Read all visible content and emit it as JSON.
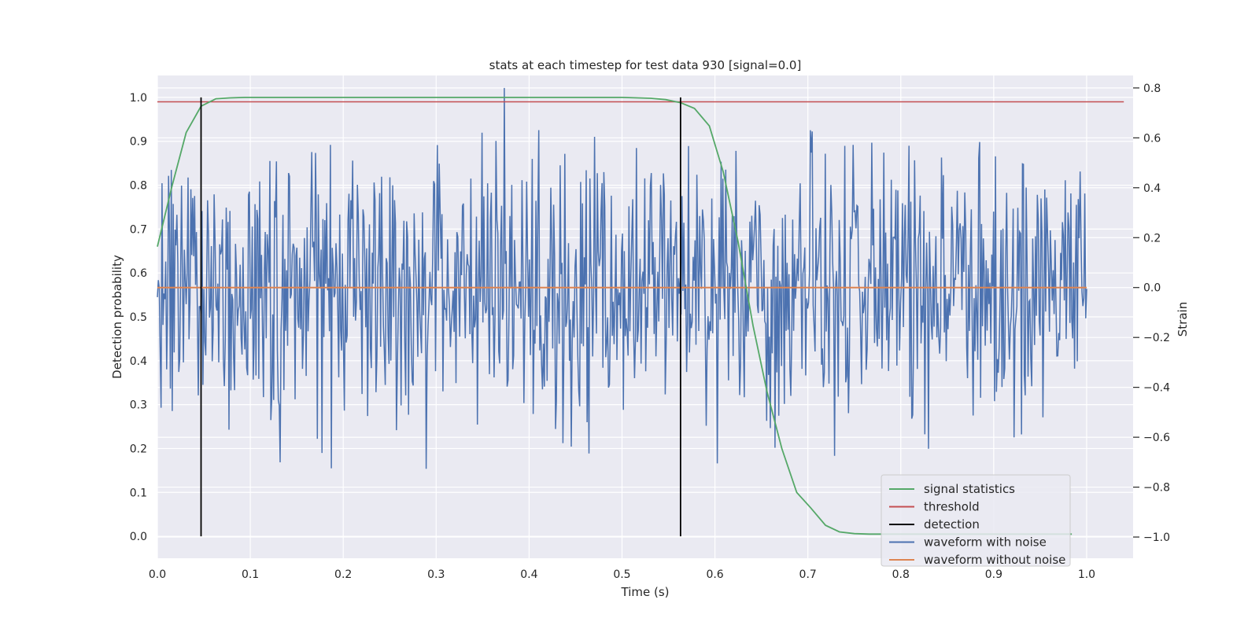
{
  "chart_data": {
    "type": "line",
    "title": "stats at each timestep for test data 930 [signal=0.0]",
    "xlabel": "Time (s)",
    "ylabel_left": "Detection probability",
    "ylabel_right": "Strain",
    "xlim": [
      0.0,
      1.05
    ],
    "ylim_left": [
      -0.05,
      1.05
    ],
    "ylim_right": [
      -1.085,
      0.85
    ],
    "x_ticks": [
      0.0,
      0.1,
      0.2,
      0.3,
      0.4,
      0.5,
      0.6,
      0.7,
      0.8,
      0.9,
      1.0
    ],
    "x_tick_labels": [
      "0.0",
      "0.1",
      "0.2",
      "0.3",
      "0.4",
      "0.5",
      "0.6",
      "0.7",
      "0.8",
      "0.9",
      "1.0"
    ],
    "y_left_ticks": [
      0.0,
      0.1,
      0.2,
      0.3,
      0.4,
      0.5,
      0.6,
      0.7,
      0.8,
      0.9,
      1.0
    ],
    "y_left_tick_labels": [
      "0.0",
      "0.1",
      "0.2",
      "0.3",
      "0.4",
      "0.5",
      "0.6",
      "0.7",
      "0.8",
      "0.9",
      "1.0"
    ],
    "y_right_ticks": [
      -1.0,
      -0.8,
      -0.6,
      -0.4,
      -0.2,
      0.0,
      0.2,
      0.4,
      0.6,
      0.8
    ],
    "y_right_tick_labels": [
      "−1.0",
      "−0.8",
      "−0.6",
      "−0.4",
      "−0.2",
      "0.0",
      "0.2",
      "0.4",
      "0.6",
      "0.8"
    ],
    "grid": true,
    "legend_position": "bottom-right",
    "series": [
      {
        "name": "signal statistics",
        "axis": "left",
        "color": "#55a868",
        "x": [
          0.0,
          0.016,
          0.031,
          0.047,
          0.063,
          0.078,
          0.094,
          0.109,
          0.125,
          0.141,
          0.2,
          0.3,
          0.4,
          0.5,
          0.531,
          0.547,
          0.563,
          0.578,
          0.594,
          0.609,
          0.625,
          0.641,
          0.656,
          0.672,
          0.688,
          0.703,
          0.719,
          0.734,
          0.75,
          0.766,
          0.781,
          0.8,
          0.9,
          0.984
        ],
        "y": [
          0.66,
          0.8,
          0.92,
          0.98,
          0.997,
          0.999,
          1.0,
          1.0,
          1.0,
          1.0,
          1.0,
          1.0,
          1.0,
          1.0,
          0.998,
          0.995,
          0.988,
          0.975,
          0.935,
          0.83,
          0.67,
          0.48,
          0.33,
          0.2,
          0.1,
          0.065,
          0.025,
          0.01,
          0.006,
          0.005,
          0.005,
          0.005,
          0.005,
          0.005
        ]
      },
      {
        "name": "threshold",
        "axis": "left",
        "color": "#c44e52",
        "x": [
          0.0,
          1.04
        ],
        "y": [
          0.99,
          0.99
        ]
      },
      {
        "name": "detection",
        "axis": "left",
        "color": "#000000",
        "segments": [
          {
            "x": 0.047,
            "y": [
              0.0,
              1.0
            ]
          },
          {
            "x": 0.563,
            "y": [
              0.0,
              1.0
            ]
          }
        ]
      },
      {
        "name": "waveform with noise",
        "axis": "right",
        "color": "#4c72b0",
        "description_of_values": "random noise between about -1.0 and 0.8",
        "x_range": [
          0.0,
          1.0
        ],
        "n_points": 1000,
        "y_min": -1.0,
        "y_max": 0.8,
        "seed": 930
      },
      {
        "name": "waveform without noise",
        "axis": "right",
        "color": "#dd8452",
        "x": [
          0.0,
          1.0
        ],
        "y": [
          0.0,
          0.0
        ]
      }
    ]
  }
}
